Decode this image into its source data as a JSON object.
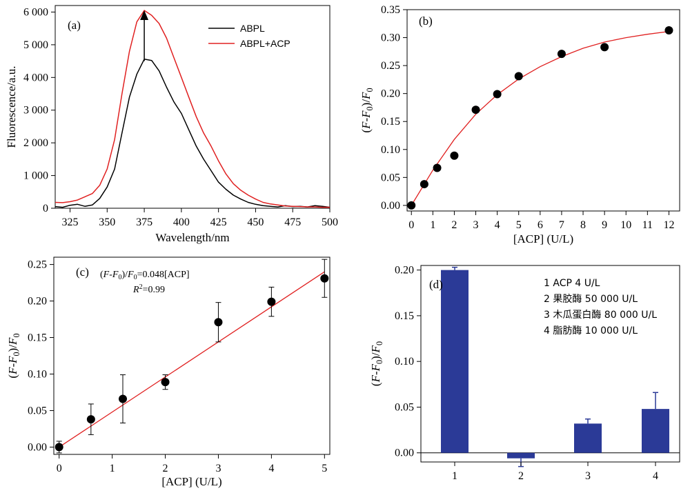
{
  "chart_data": [
    {
      "panel": "(a)",
      "type": "line",
      "xlabel": "Wavelength/nm",
      "ylabel": "Fluorescence/a.u.",
      "xlim": [
        315,
        500
      ],
      "ylim": [
        0,
        6200
      ],
      "xticks": [
        325,
        350,
        375,
        400,
        425,
        450,
        475,
        500
      ],
      "yticks": [
        0,
        1000,
        2000,
        3000,
        4000,
        5000,
        6000
      ],
      "ytick_labels": [
        "0",
        "1 000",
        "2 000",
        "3 000",
        "4 000",
        "5 000",
        "6 000"
      ],
      "legend_position": "top-right",
      "series": [
        {
          "name": "ABPL",
          "color": "#000000",
          "x": [
            315,
            320,
            325,
            330,
            335,
            340,
            345,
            350,
            355,
            360,
            365,
            370,
            375,
            380,
            385,
            390,
            395,
            400,
            405,
            410,
            415,
            420,
            425,
            430,
            435,
            440,
            445,
            450,
            455,
            460,
            465,
            470,
            475,
            480,
            485,
            490,
            495,
            500
          ],
          "y": [
            50,
            30,
            90,
            120,
            60,
            100,
            300,
            650,
            1200,
            2300,
            3400,
            4100,
            4560,
            4520,
            4200,
            3700,
            3250,
            2900,
            2400,
            1900,
            1500,
            1150,
            800,
            580,
            400,
            280,
            180,
            120,
            80,
            60,
            40,
            80,
            50,
            60,
            40,
            80,
            60,
            30
          ]
        },
        {
          "name": "ABPL+ACP",
          "color": "#e02020",
          "x": [
            315,
            320,
            325,
            330,
            335,
            340,
            345,
            350,
            355,
            360,
            365,
            370,
            375,
            380,
            385,
            390,
            395,
            400,
            405,
            410,
            415,
            420,
            425,
            430,
            435,
            440,
            445,
            450,
            455,
            460,
            465,
            470,
            475,
            480,
            485,
            490,
            495,
            500
          ],
          "y": [
            180,
            170,
            200,
            250,
            350,
            450,
            700,
            1200,
            2100,
            3500,
            4800,
            5700,
            6050,
            5900,
            5650,
            5200,
            4600,
            4000,
            3400,
            2800,
            2300,
            1900,
            1450,
            1050,
            750,
            550,
            400,
            280,
            180,
            130,
            100,
            70,
            60,
            50,
            40,
            40,
            30,
            30
          ]
        }
      ],
      "annotation": "arrow up at 375 nm"
    },
    {
      "panel": "(b)",
      "type": "scatter",
      "xlabel": "[ACP] (U/L)",
      "ylabel_parts": [
        "(",
        "F",
        "-",
        "F",
        "0",
        ")/",
        "F",
        "0"
      ],
      "xlim": [
        -0.2,
        12.5
      ],
      "ylim": [
        -0.01,
        0.35
      ],
      "xticks": [
        0,
        1,
        2,
        3,
        4,
        5,
        6,
        7,
        8,
        9,
        10,
        11,
        12
      ],
      "yticks": [
        0.0,
        0.05,
        0.1,
        0.15,
        0.2,
        0.25,
        0.3,
        0.35
      ],
      "ytick_labels": [
        "0.00",
        "0.05",
        "0.10",
        "0.15",
        "0.20",
        "0.25",
        "0.30",
        "0.35"
      ],
      "points": {
        "x": [
          0,
          0.6,
          1.2,
          2,
          3,
          4,
          5,
          7,
          9,
          12
        ],
        "y": [
          0.0,
          0.038,
          0.067,
          0.089,
          0.171,
          0.199,
          0.231,
          0.271,
          0.283,
          0.313
        ]
      },
      "fit_line": {
        "color": "#e02020",
        "x": [
          0,
          1,
          2,
          3,
          4,
          5,
          6,
          7,
          8,
          9,
          10,
          11,
          12
        ],
        "y": [
          0.0,
          0.063,
          0.118,
          0.163,
          0.198,
          0.226,
          0.248,
          0.266,
          0.281,
          0.292,
          0.3,
          0.306,
          0.311
        ]
      }
    },
    {
      "panel": "(c)",
      "type": "scatter",
      "xlabel": "[ACP] (U/L)",
      "ylabel_parts": [
        "(",
        "F",
        "-",
        "F",
        "0",
        ")/",
        "F",
        "0"
      ],
      "xlim": [
        -0.1,
        5.1
      ],
      "ylim": [
        -0.01,
        0.26
      ],
      "xticks": [
        0,
        1,
        2,
        3,
        4,
        5
      ],
      "yticks": [
        0.0,
        0.05,
        0.1,
        0.15,
        0.2,
        0.25
      ],
      "ytick_labels": [
        "0.00",
        "0.05",
        "0.10",
        "0.15",
        "0.20",
        "0.25"
      ],
      "points": {
        "x": [
          0,
          0.6,
          1.2,
          2,
          3,
          4,
          5
        ],
        "y": [
          0.0,
          0.038,
          0.066,
          0.089,
          0.171,
          0.199,
          0.231
        ],
        "err": [
          0.008,
          0.021,
          0.033,
          0.01,
          0.027,
          0.02,
          0.026
        ]
      },
      "fit_line": {
        "color": "#e02020",
        "x": [
          0,
          5
        ],
        "y": [
          0.0,
          0.24
        ]
      },
      "equation_parts": [
        "(",
        "F",
        "-",
        "F",
        "0",
        ")/",
        "F",
        "0",
        "=0.048[ACP]"
      ],
      "r2_parts": [
        "R",
        "2",
        "=0.99"
      ]
    },
    {
      "panel": "(d)",
      "type": "bar",
      "ylabel_parts": [
        "(",
        "F",
        "-",
        "F",
        "0",
        ")/",
        "F",
        "0"
      ],
      "categories": [
        "1",
        "2",
        "3",
        "4"
      ],
      "values": [
        0.2,
        -0.006,
        0.032,
        0.048
      ],
      "err": [
        0.003,
        0.009,
        0.005,
        0.018
      ],
      "color": "#2b3a97",
      "ylim": [
        -0.01,
        0.205
      ],
      "yticks": [
        0.0,
        0.05,
        0.1,
        0.15,
        0.2
      ],
      "ytick_labels": [
        "0.00",
        "0.05",
        "0.10",
        "0.15",
        "0.20"
      ],
      "legend_lines": [
        "1 ACP 4 U/L",
        "2 果胶酶 50 000 U/L",
        "3 木瓜蛋白酶 80 000 U/L",
        "4 脂肪酶 10 000 U/L"
      ]
    }
  ]
}
